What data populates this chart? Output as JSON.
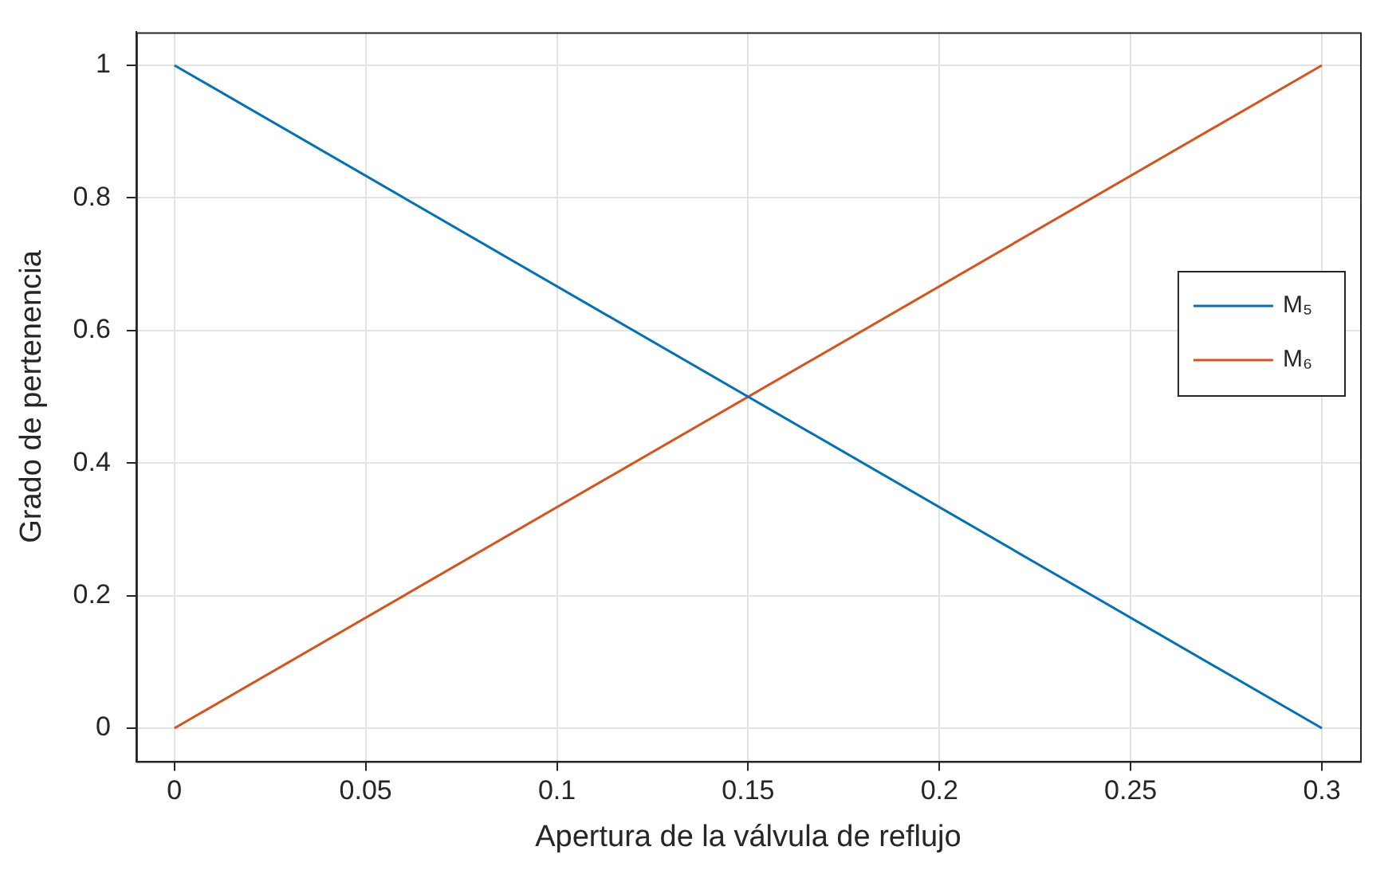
{
  "chart_data": {
    "type": "line",
    "xlabel": "Apertura de la válvula de reflujo",
    "ylabel": "Grado de pertenencia",
    "series": [
      {
        "name": "M₅",
        "color": "#0072bd",
        "values": [
          1,
          0
        ]
      },
      {
        "name": "M₆",
        "color": "#d95319",
        "values": [
          0,
          1
        ]
      }
    ],
    "x": [
      0,
      0.3
    ],
    "xlim": [
      -0.01,
      0.31
    ],
    "xticks": [
      0,
      0.05,
      0.1,
      0.15,
      0.2,
      0.25,
      0.3
    ],
    "ylim": [
      -0.05,
      1.05
    ],
    "yticks": [
      0,
      0.2,
      0.4,
      0.6,
      0.8,
      1
    ],
    "grid": true,
    "legend": "right",
    "marker": "none",
    "line_style": "solid"
  }
}
